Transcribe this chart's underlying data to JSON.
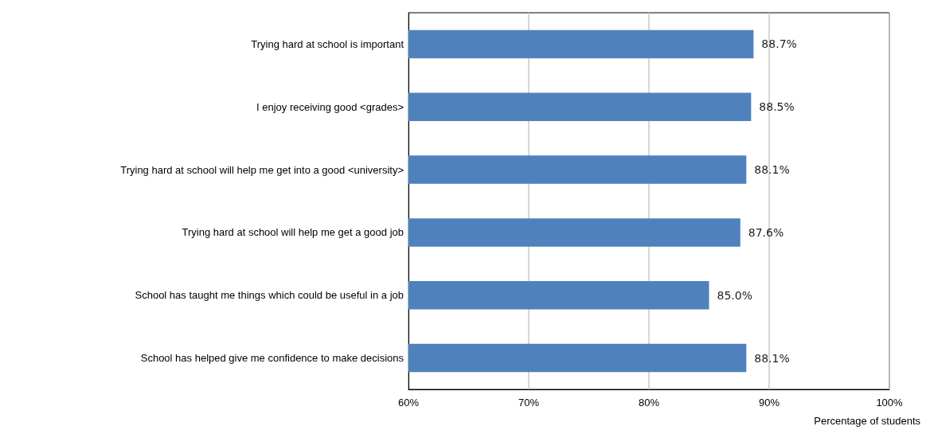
{
  "chart_data": {
    "type": "bar",
    "orientation": "horizontal",
    "xlabel": "Percentage of students",
    "categories": [
      "Trying hard at school is important",
      "I enjoy receiving good <grades>",
      "Trying hard at school will help me get into a good <university>",
      "Trying hard at school will help me get a good job",
      "School has taught me things which could be useful in a job",
      "School has helped give me confidence to make decisions"
    ],
    "values": [
      88.7,
      88.5,
      88.1,
      87.6,
      85.0,
      88.1
    ],
    "value_labels": [
      "88.7%",
      "88.5%",
      "88.1%",
      "87.6%",
      "85.0%",
      "88.1%"
    ],
    "color": "#4f81bd",
    "xlim": [
      60,
      100
    ],
    "xticks": [
      {
        "value": 60,
        "label": "60%"
      },
      {
        "value": 70,
        "label": "70%"
      },
      {
        "value": 80,
        "label": "80%"
      },
      {
        "value": 90,
        "label": "90%"
      },
      {
        "value": 100,
        "label": "100%"
      }
    ],
    "grid": "x"
  }
}
